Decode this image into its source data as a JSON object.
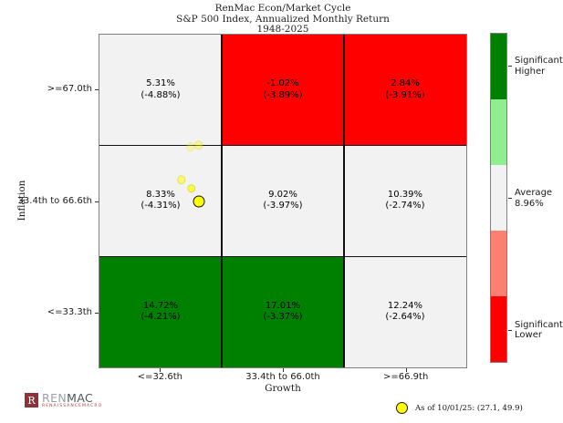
{
  "title": {
    "line1": "RenMac Econ/Market Cycle",
    "line2": "S&P 500 Index, Annualized Monthly Return",
    "line3": "1948-2025"
  },
  "chart_data": {
    "type": "heatmap",
    "title": "RenMac Econ/Market Cycle",
    "subtitle": "S&P 500 Index, Annualized Monthly Return",
    "period": "1948-2025",
    "xlabel": "Growth",
    "ylabel": "Inflation",
    "x_categories": [
      "<=32.6th",
      "33.4th to 66.0th",
      ">=66.9th"
    ],
    "y_categories_top_to_bottom": [
      ">=67.0th",
      "33.4th to 66.6th",
      "<=33.3th"
    ],
    "average_return": "8.96%",
    "rows": [
      [
        {
          "label": "5.31%",
          "sublabel": "(-4.88%)",
          "value": 5.31,
          "sub_value": -4.88,
          "color": "#f2f2f2"
        },
        {
          "label": "-1.02%",
          "sublabel": "(-3.89%)",
          "value": -1.02,
          "sub_value": -3.89,
          "color": "#ff0000"
        },
        {
          "label": "2.84%",
          "sublabel": "(-3.91%)",
          "value": 2.84,
          "sub_value": -3.91,
          "color": "#ff0000"
        }
      ],
      [
        {
          "label": "8.33%",
          "sublabel": "(-4.31%)",
          "value": 8.33,
          "sub_value": -4.31,
          "color": "#f2f2f2"
        },
        {
          "label": "9.02%",
          "sublabel": "(-3.97%)",
          "value": 9.02,
          "sub_value": -3.97,
          "color": "#f2f2f2"
        },
        {
          "label": "10.39%",
          "sublabel": "(-2.74%)",
          "value": 10.39,
          "sub_value": -2.74,
          "color": "#f2f2f2"
        }
      ],
      [
        {
          "label": "14.72%",
          "sublabel": "(-4.21%)",
          "value": 14.72,
          "sub_value": -4.21,
          "color": "#008000"
        },
        {
          "label": "17.01%",
          "sublabel": "(-3.37%)",
          "value": 17.01,
          "sub_value": -3.37,
          "color": "#008000"
        },
        {
          "label": "12.24%",
          "sublabel": "(-2.64%)",
          "value": 12.24,
          "sub_value": -2.64,
          "color": "#f2f2f2"
        }
      ]
    ],
    "overlay_points": {
      "marker_color": "#ffff00",
      "axis_domain": [
        0,
        100
      ],
      "points": [
        {
          "growth": 24.8,
          "inflation": 66.2,
          "alpha": 0.3,
          "current": false
        },
        {
          "growth": 27.0,
          "inflation": 66.8,
          "alpha": 0.42,
          "current": false
        },
        {
          "growth": 22.3,
          "inflation": 56.4,
          "alpha": 0.55,
          "current": false
        },
        {
          "growth": 25.0,
          "inflation": 53.7,
          "alpha": 0.72,
          "current": false
        },
        {
          "growth": 27.1,
          "inflation": 49.9,
          "alpha": 1.0,
          "current": true
        }
      ]
    }
  },
  "colorbar": {
    "segments": [
      {
        "color": "#008000",
        "label_lines": [
          "Significantly",
          "Higher"
        ]
      },
      {
        "color": "#90ee90",
        "label_lines": []
      },
      {
        "color": "#f2f2f2",
        "label_lines": [
          "Average",
          "8.96%"
        ]
      },
      {
        "color": "#fa8072",
        "label_lines": []
      },
      {
        "color": "#ff0000",
        "label_lines": [
          "Significantly",
          "Lower"
        ]
      }
    ]
  },
  "legend": {
    "marker_color": "#ffff00",
    "text": "As of 10/01/25:  (27.1, 49.9)"
  },
  "logo": {
    "mark_letter": "R",
    "mark_color": "#8e3138",
    "name_left": "REN",
    "name_left_color": "#9aa0a6",
    "name_right": "MAC",
    "name_right_color": "#4d545a",
    "tagline": "RENAISSANCEMACRO",
    "tagline_color": "#a63c3c"
  }
}
